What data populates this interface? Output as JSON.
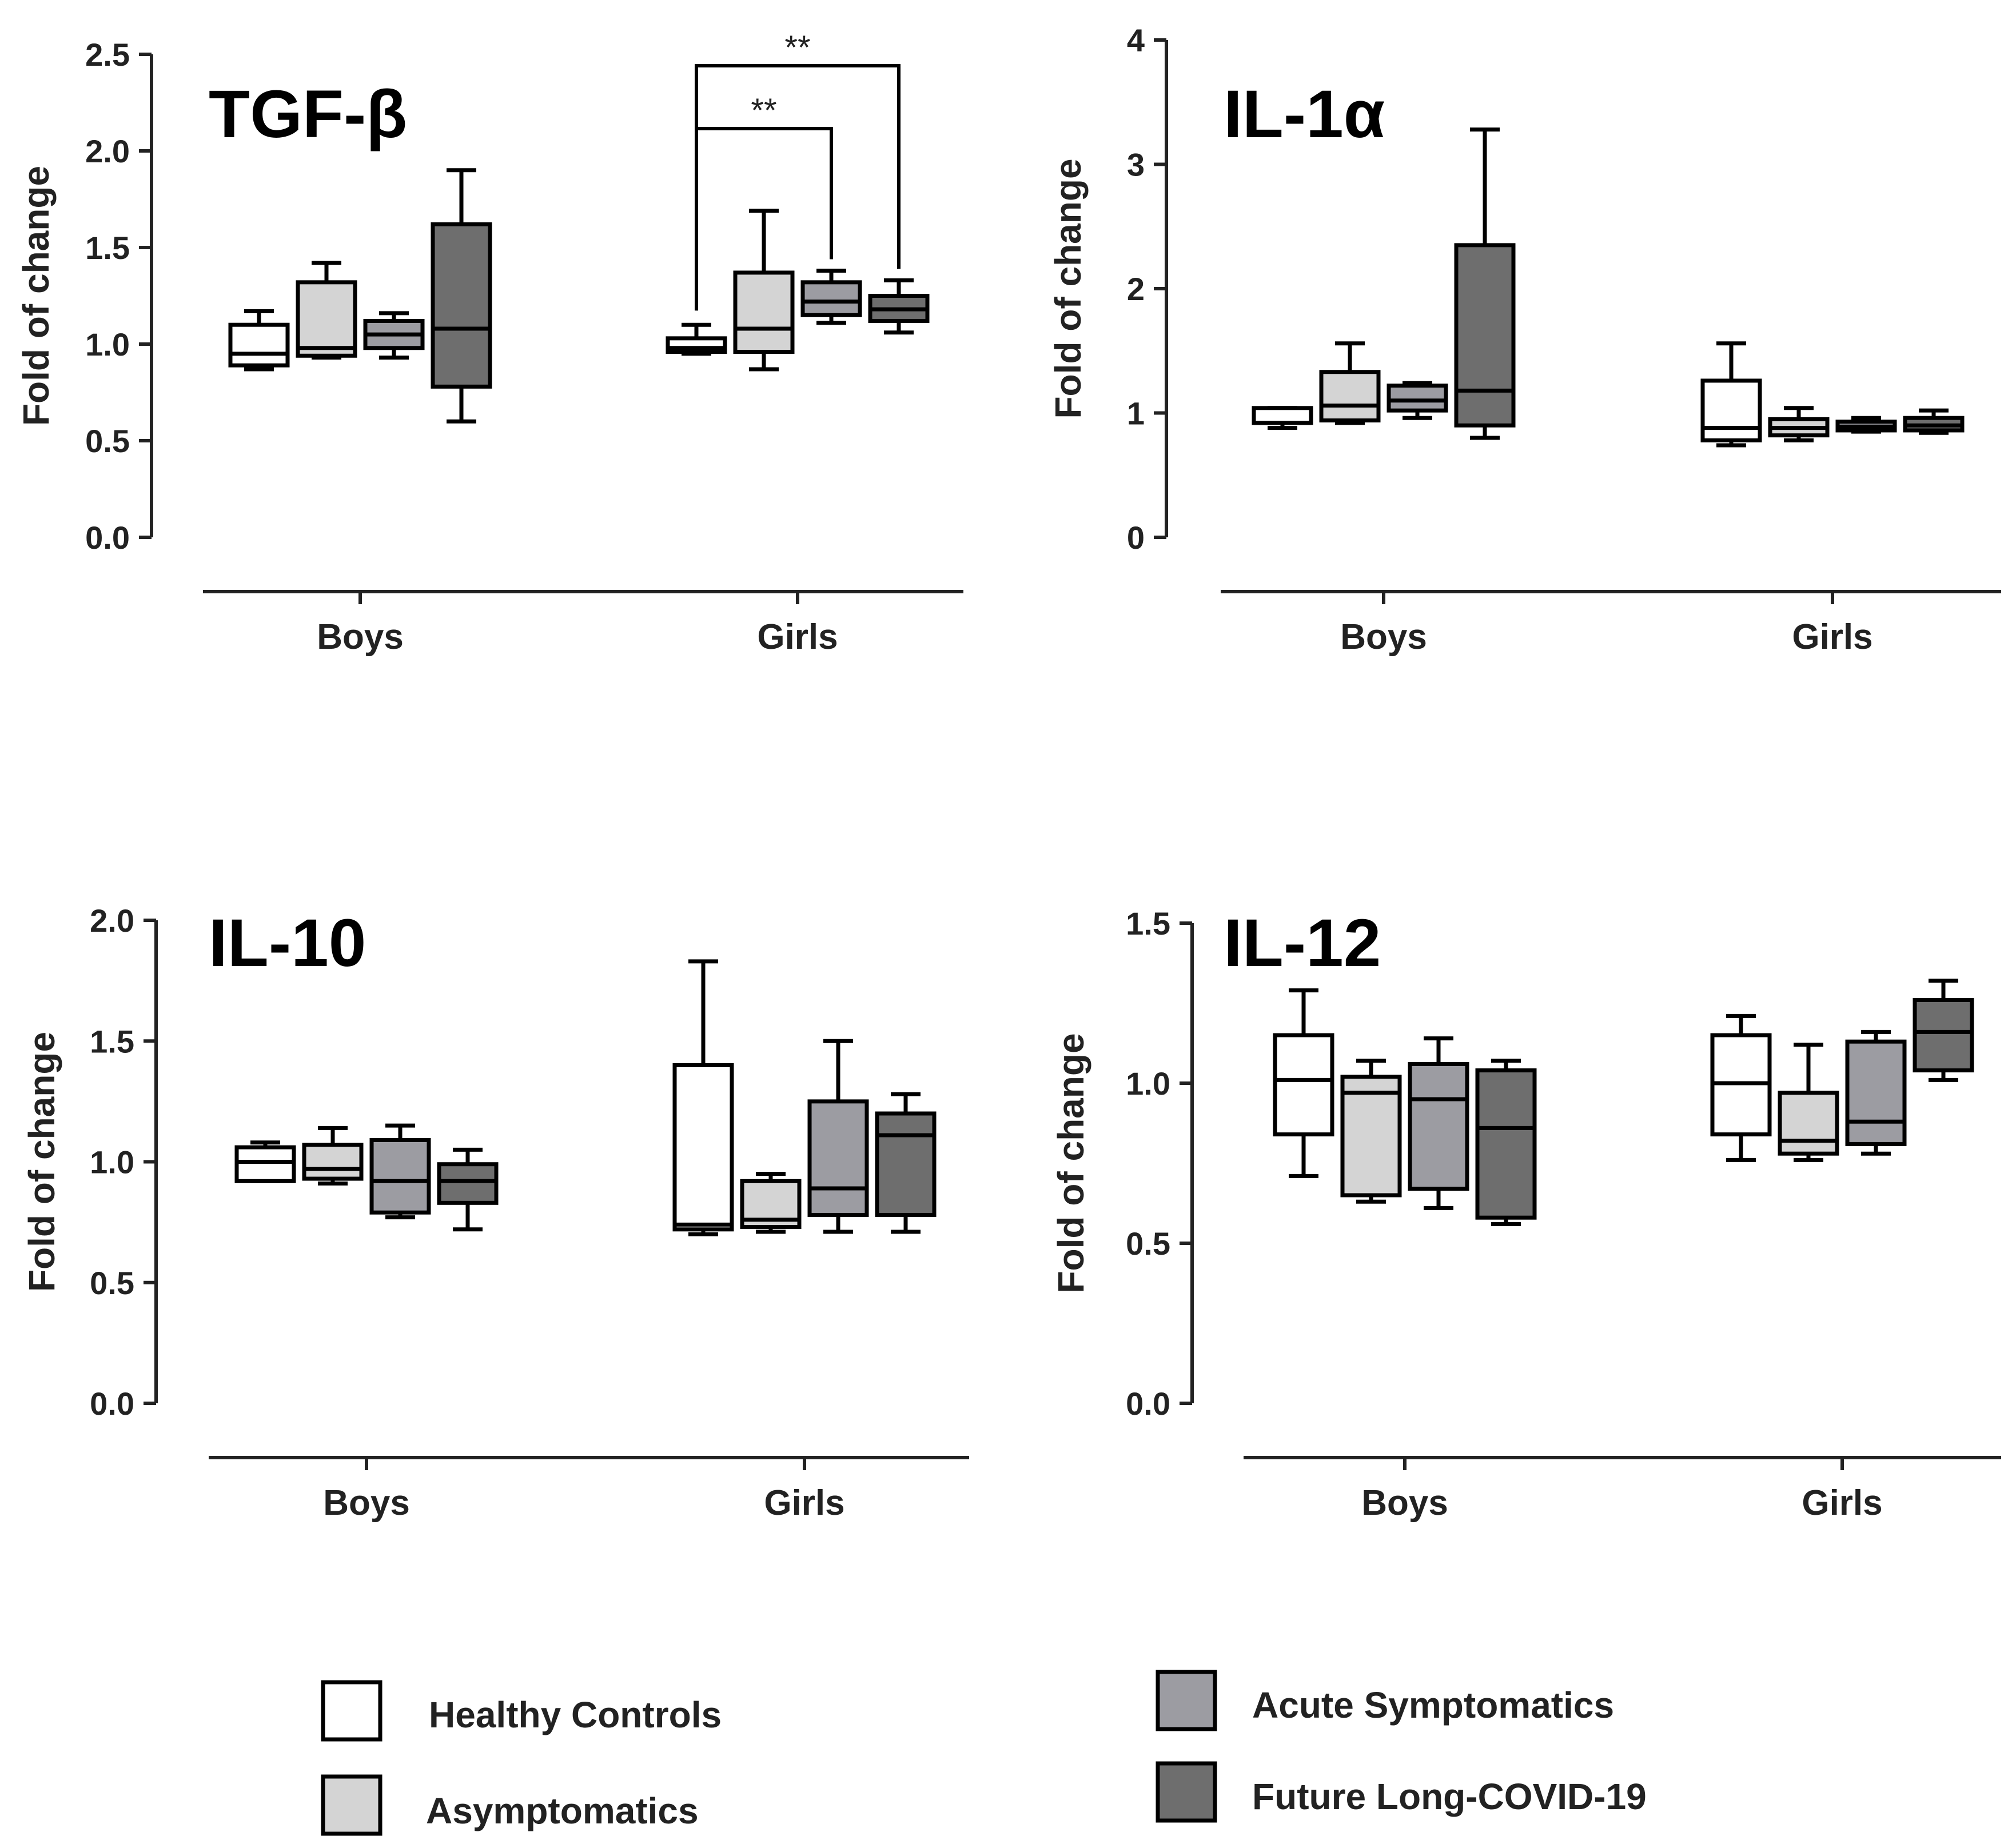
{
  "legend": [
    {
      "name": "Healthy Controls",
      "color": "#ffffff"
    },
    {
      "name": "Asymptomatics",
      "color": "#d4d4d4"
    },
    {
      "name": "Acute Symptomatics",
      "color": "#9c9ca2"
    },
    {
      "name": "Future Long-COVID-19",
      "color": "#6e6e6e"
    }
  ],
  "chart_data": [
    {
      "type": "box",
      "title": "TGF-β",
      "ylabel": "Fold of change",
      "ylim": [
        0,
        2.5
      ],
      "yticks": [
        "0.0",
        "0.5",
        "1.0",
        "1.5",
        "2.0",
        "2.5"
      ],
      "categories": [
        "Boys",
        "Girls"
      ],
      "series": [
        {
          "name": "Healthy Controls",
          "boys": {
            "min": 0.87,
            "q1": 0.89,
            "median": 0.95,
            "q3": 1.1,
            "max": 1.17
          },
          "girls": {
            "min": 0.95,
            "q1": 0.96,
            "median": 0.98,
            "q3": 1.03,
            "max": 1.1
          }
        },
        {
          "name": "Asymptomatics",
          "boys": {
            "min": 0.93,
            "q1": 0.94,
            "median": 0.98,
            "q3": 1.32,
            "max": 1.42
          },
          "girls": {
            "min": 0.87,
            "q1": 0.96,
            "median": 1.08,
            "q3": 1.37,
            "max": 1.69
          }
        },
        {
          "name": "Acute Symptomatics",
          "boys": {
            "min": 0.93,
            "q1": 0.98,
            "median": 1.05,
            "q3": 1.12,
            "max": 1.16
          },
          "girls": {
            "min": 1.11,
            "q1": 1.15,
            "median": 1.22,
            "q3": 1.32,
            "max": 1.38
          }
        },
        {
          "name": "Future Long-COVID-19",
          "boys": {
            "min": 0.6,
            "q1": 0.78,
            "median": 1.08,
            "q3": 1.62,
            "max": 1.9
          },
          "girls": {
            "min": 1.06,
            "q1": 1.12,
            "median": 1.18,
            "q3": 1.25,
            "max": 1.33
          }
        }
      ],
      "annotations": [
        {
          "text": "**",
          "from": "Girls Healthy Controls",
          "to": "Girls Acute Symptomatics"
        },
        {
          "text": "**",
          "from": "Girls Healthy Controls",
          "to": "Girls Future Long-COVID-19"
        }
      ]
    },
    {
      "type": "box",
      "title": "IL-1α",
      "ylabel": "Fold of change",
      "ylim": [
        0,
        4
      ],
      "yticks": [
        "0",
        "1",
        "2",
        "3",
        "4"
      ],
      "categories": [
        "Boys",
        "Girls"
      ],
      "series": [
        {
          "name": "Healthy Controls",
          "boys": {
            "min": 0.88,
            "q1": 0.92,
            "median": 0.92,
            "q3": 1.04,
            "max": 1.04
          },
          "girls": {
            "min": 0.74,
            "q1": 0.78,
            "median": 0.88,
            "q3": 1.26,
            "max": 1.56
          }
        },
        {
          "name": "Asymptomatics",
          "boys": {
            "min": 0.92,
            "q1": 0.94,
            "median": 1.06,
            "q3": 1.33,
            "max": 1.56
          },
          "girls": {
            "min": 0.78,
            "q1": 0.82,
            "median": 0.88,
            "q3": 0.95,
            "max": 1.04
          }
        },
        {
          "name": "Acute Symptomatics",
          "boys": {
            "min": 0.96,
            "q1": 1.02,
            "median": 1.1,
            "q3": 1.22,
            "max": 1.24
          },
          "girls": {
            "min": 0.85,
            "q1": 0.86,
            "median": 0.89,
            "q3": 0.93,
            "max": 0.96
          }
        },
        {
          "name": "Future Long-COVID-19",
          "boys": {
            "min": 0.8,
            "q1": 0.9,
            "median": 1.18,
            "q3": 2.35,
            "max": 3.28
          },
          "girls": {
            "min": 0.84,
            "q1": 0.86,
            "median": 0.9,
            "q3": 0.96,
            "max": 1.02
          }
        }
      ]
    },
    {
      "type": "box",
      "title": "IL-10",
      "ylabel": "Fold of change",
      "ylim": [
        0,
        2.0
      ],
      "yticks": [
        "0.0",
        "0.5",
        "1.0",
        "1.5",
        "2.0"
      ],
      "categories": [
        "Boys",
        "Girls"
      ],
      "series": [
        {
          "name": "Healthy Controls",
          "boys": {
            "min": 0.92,
            "q1": 0.92,
            "median": 1.0,
            "q3": 1.06,
            "max": 1.08
          },
          "girls": {
            "min": 0.7,
            "q1": 0.72,
            "median": 0.74,
            "q3": 1.4,
            "max": 1.83
          }
        },
        {
          "name": "Asymptomatics",
          "boys": {
            "min": 0.91,
            "q1": 0.93,
            "median": 0.97,
            "q3": 1.07,
            "max": 1.14
          },
          "girls": {
            "min": 0.71,
            "q1": 0.73,
            "median": 0.76,
            "q3": 0.92,
            "max": 0.95
          }
        },
        {
          "name": "Acute Symptomatics",
          "boys": {
            "min": 0.77,
            "q1": 0.79,
            "median": 0.92,
            "q3": 1.09,
            "max": 1.15
          },
          "girls": {
            "min": 0.71,
            "q1": 0.78,
            "median": 0.89,
            "q3": 1.25,
            "max": 1.5
          }
        },
        {
          "name": "Future Long-COVID-19",
          "boys": {
            "min": 0.72,
            "q1": 0.83,
            "median": 0.92,
            "q3": 0.99,
            "max": 1.05
          },
          "girls": {
            "min": 0.71,
            "q1": 0.78,
            "median": 1.11,
            "q3": 1.2,
            "max": 1.28
          }
        }
      ]
    },
    {
      "type": "box",
      "title": "IL-12",
      "ylabel": "Fold of change",
      "ylim": [
        0,
        1.5
      ],
      "yticks": [
        "0.0",
        "0.5",
        "1.0",
        "1.5"
      ],
      "categories": [
        "Boys",
        "Girls"
      ],
      "series": [
        {
          "name": "Healthy Controls",
          "boys": {
            "min": 0.71,
            "q1": 0.84,
            "median": 1.01,
            "q3": 1.15,
            "max": 1.29
          },
          "girls": {
            "min": 0.76,
            "q1": 0.84,
            "median": 1.0,
            "q3": 1.15,
            "max": 1.21
          }
        },
        {
          "name": "Asymptomatics",
          "boys": {
            "min": 0.63,
            "q1": 0.65,
            "median": 0.97,
            "q3": 1.02,
            "max": 1.07
          },
          "girls": {
            "min": 0.76,
            "q1": 0.78,
            "median": 0.82,
            "q3": 0.97,
            "max": 1.12
          }
        },
        {
          "name": "Acute Symptomatics",
          "boys": {
            "min": 0.61,
            "q1": 0.67,
            "median": 0.95,
            "q3": 1.06,
            "max": 1.14
          },
          "girls": {
            "min": 0.78,
            "q1": 0.81,
            "median": 0.88,
            "q3": 1.13,
            "max": 1.16
          }
        },
        {
          "name": "Future Long-COVID-19",
          "boys": {
            "min": 0.56,
            "q1": 0.58,
            "median": 0.86,
            "q3": 1.04,
            "max": 1.07
          },
          "girls": {
            "min": 1.01,
            "q1": 1.04,
            "median": 1.16,
            "q3": 1.26,
            "max": 1.32
          }
        }
      ]
    }
  ]
}
